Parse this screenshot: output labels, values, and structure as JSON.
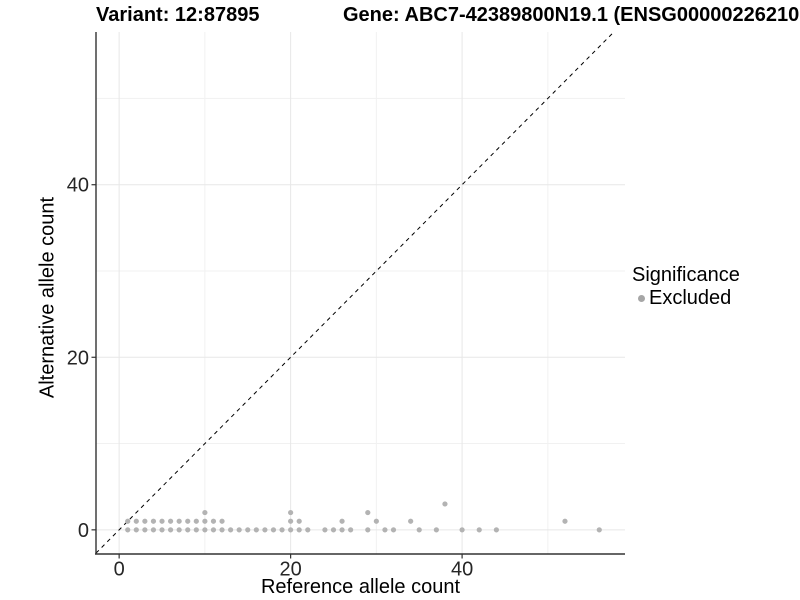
{
  "titles": {
    "variant": "Variant: 12:87895",
    "gene": "Gene: ABC7-42389800N19.1 (ENSG00000226210"
  },
  "colors": {
    "axis_line": "#333333",
    "tick_mark": "#333333",
    "tick_label": "#262626",
    "grid_major": "#e7e7e7",
    "grid_minor": "#f1f1f1",
    "identity_line": "#000000",
    "point": "#b3b3b3",
    "legend_dot": "#a6a6a6"
  },
  "chart_data": {
    "type": "scatter",
    "title_left": "Variant: 12:87895",
    "title_right": "Gene: ABC7-42389800N19.1 (ENSG00000226210",
    "xlabel": "Reference allele count",
    "ylabel": "Alternative allele count",
    "x_ticks": [
      0,
      20,
      40
    ],
    "y_ticks": [
      0,
      20,
      40
    ],
    "x_minor_gridlines": [
      10,
      30,
      50
    ],
    "y_minor_gridlines": [
      10,
      30,
      50
    ],
    "xlim": [
      -2.7,
      59.0
    ],
    "ylim": [
      -2.8,
      57.7
    ],
    "grid": true,
    "legend_position": "right",
    "legend_title": "Significance",
    "identity_line": {
      "style": "dashed",
      "color": "#000000"
    },
    "series": [
      {
        "name": "Excluded",
        "color": "#b3b3b3",
        "points": [
          [
            1,
            0
          ],
          [
            2,
            0
          ],
          [
            3,
            0
          ],
          [
            4,
            0
          ],
          [
            5,
            0
          ],
          [
            6,
            0
          ],
          [
            7,
            0
          ],
          [
            8,
            0
          ],
          [
            9,
            0
          ],
          [
            10,
            0
          ],
          [
            11,
            0
          ],
          [
            12,
            0
          ],
          [
            13,
            0
          ],
          [
            14,
            0
          ],
          [
            15,
            0
          ],
          [
            16,
            0
          ],
          [
            17,
            0
          ],
          [
            18,
            0
          ],
          [
            19,
            0
          ],
          [
            20,
            0
          ],
          [
            21,
            0
          ],
          [
            22,
            0
          ],
          [
            24,
            0
          ],
          [
            25,
            0
          ],
          [
            26,
            0
          ],
          [
            27,
            0
          ],
          [
            29,
            0
          ],
          [
            31,
            0
          ],
          [
            32,
            0
          ],
          [
            35,
            0
          ],
          [
            37,
            0
          ],
          [
            40,
            0
          ],
          [
            42,
            0
          ],
          [
            44,
            0
          ],
          [
            56,
            0
          ],
          [
            1,
            1
          ],
          [
            2,
            1
          ],
          [
            3,
            1
          ],
          [
            4,
            1
          ],
          [
            5,
            1
          ],
          [
            6,
            1
          ],
          [
            7,
            1
          ],
          [
            8,
            1
          ],
          [
            9,
            1
          ],
          [
            10,
            1
          ],
          [
            11,
            1
          ],
          [
            12,
            1
          ],
          [
            20,
            1
          ],
          [
            21,
            1
          ],
          [
            26,
            1
          ],
          [
            30,
            1
          ],
          [
            34,
            1
          ],
          [
            52,
            1
          ],
          [
            10,
            2
          ],
          [
            20,
            2
          ],
          [
            29,
            2
          ],
          [
            38,
            3
          ]
        ]
      }
    ]
  }
}
